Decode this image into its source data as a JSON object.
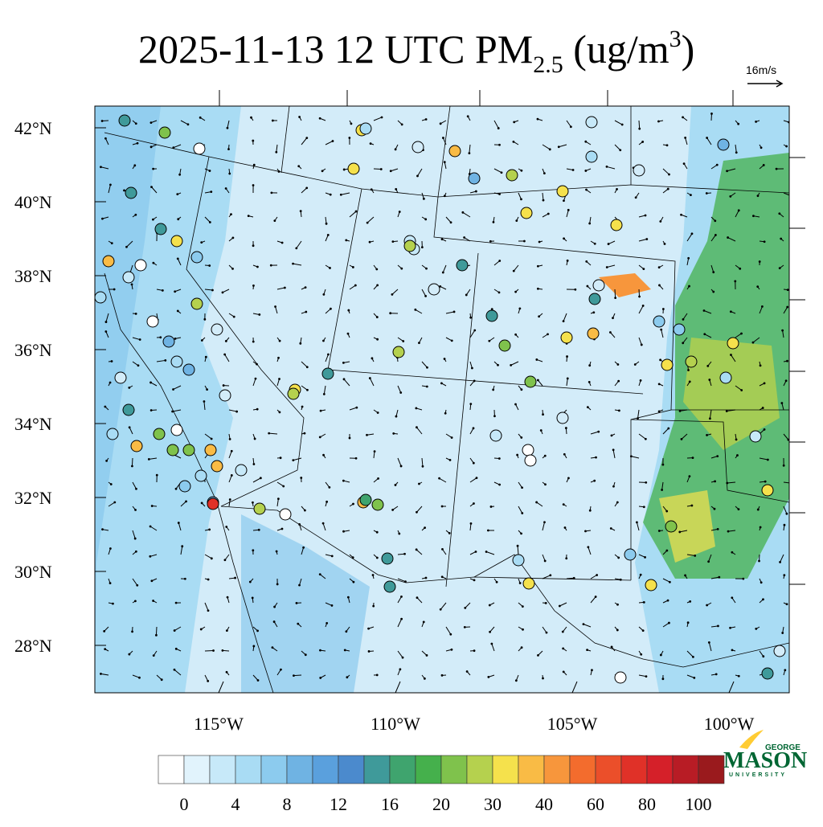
{
  "title": {
    "main": "2025-11-13 12 UTC PM",
    "sub": "2.5",
    "unit_open": " (ug/m",
    "sup": "3",
    "unit_close": ")"
  },
  "wind_scale": "16m/s",
  "lat_labels": [
    "42°N",
    "40°N",
    "38°N",
    "36°N",
    "34°N",
    "32°N",
    "30°N",
    "28°N"
  ],
  "lon_labels": [
    "115°W",
    "110°W",
    "105°W",
    "100°W"
  ],
  "colorbar": {
    "colors": [
      "#ffffff",
      "#e1f3fc",
      "#c7e9f9",
      "#a9dcf4",
      "#8ccbee",
      "#6fb3e3",
      "#5aa0dd",
      "#4b8acd",
      "#3f9a9a",
      "#3fa46e",
      "#45b04c",
      "#7fc24c",
      "#b5d14e",
      "#f5e14c",
      "#f9bb45",
      "#f7963c",
      "#f36c2d",
      "#eb4f2a",
      "#e03128",
      "#d52029",
      "#b81c25",
      "#9a1a1d"
    ],
    "labels": [
      0,
      4,
      8,
      12,
      16,
      20,
      30,
      40,
      60,
      80,
      100
    ]
  },
  "logo": {
    "top": "GEORGE",
    "name": "MASON",
    "bottom": "UNIVERSITY"
  }
}
